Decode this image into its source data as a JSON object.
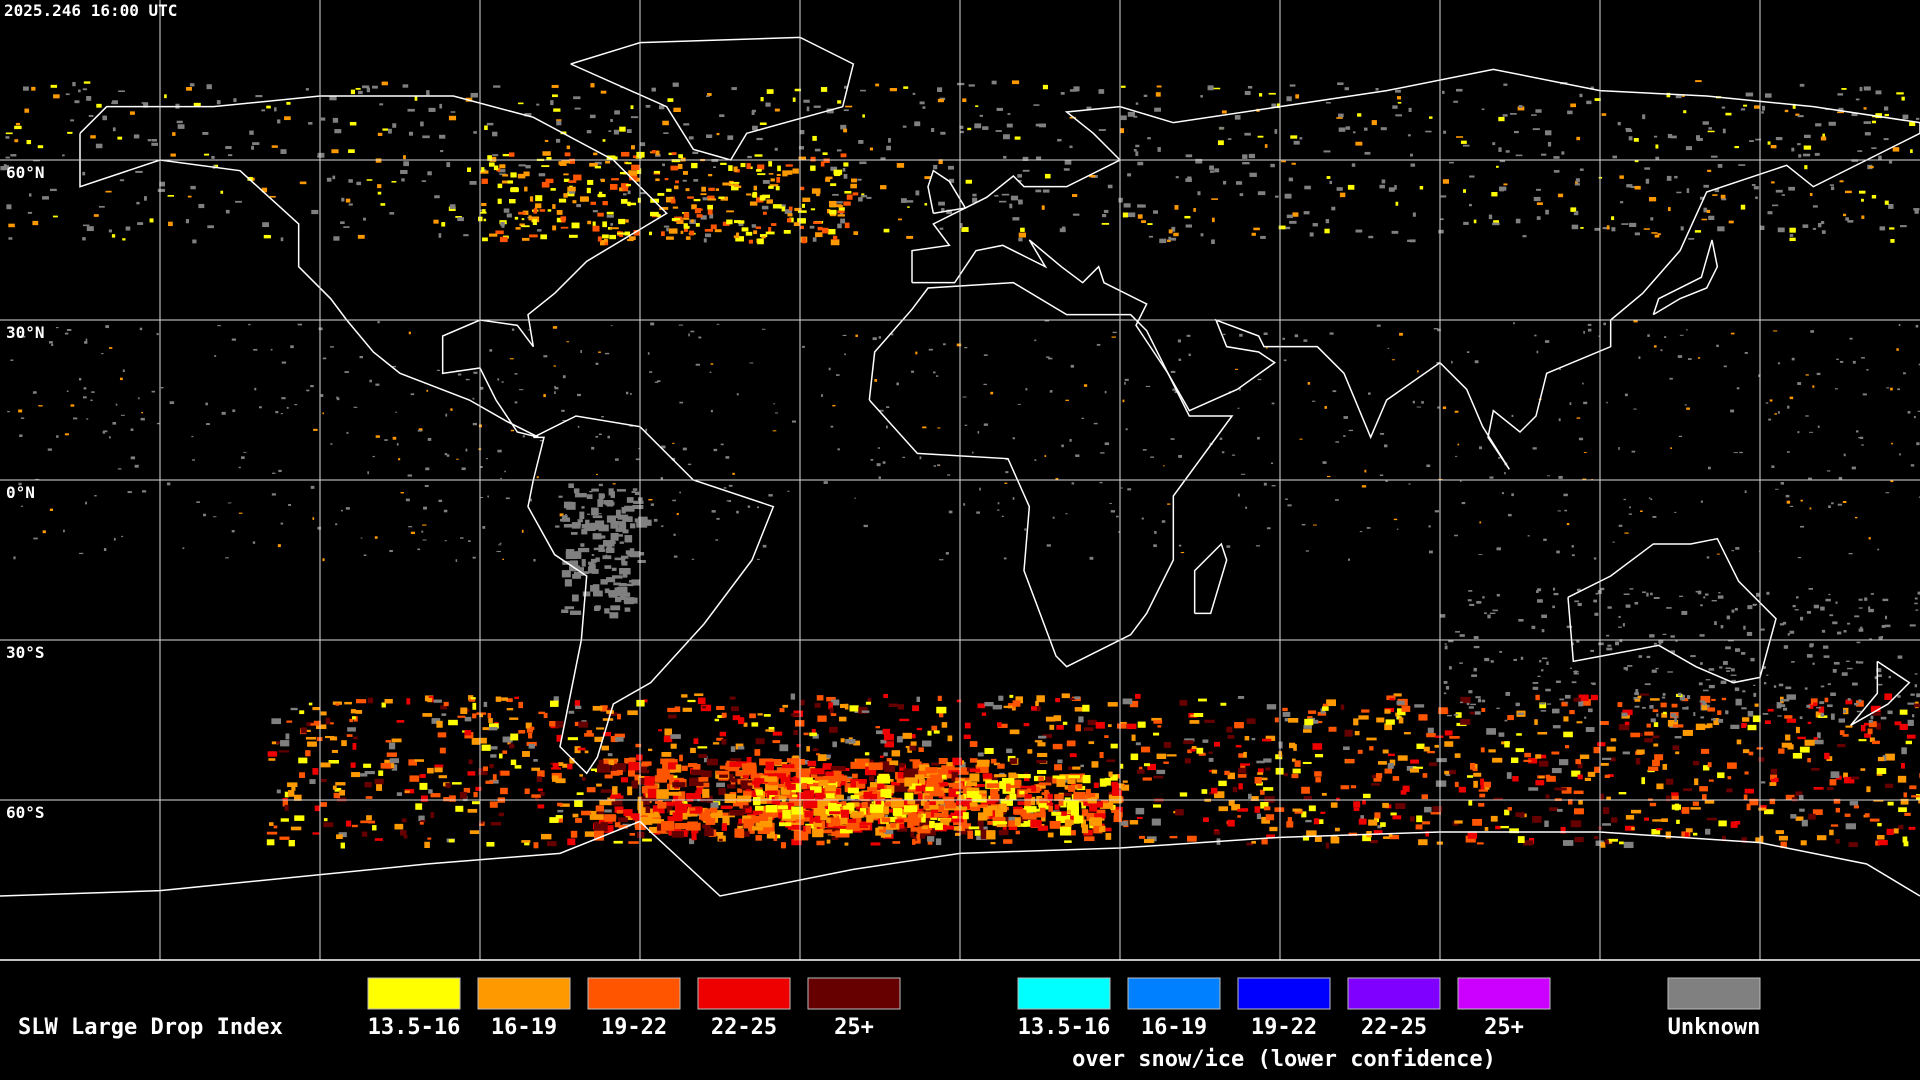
{
  "timestamp": "2025.246 16:00 UTC",
  "latitude_labels": [
    "60°N",
    "30°N",
    "0°N",
    "30°S",
    "60°S"
  ],
  "legend": {
    "title": "SLW Large Drop Index",
    "items": [
      {
        "label": "13.5-16",
        "color": "#ffff00"
      },
      {
        "label": "16-19",
        "color": "#ff9900"
      },
      {
        "label": "19-22",
        "color": "#ff5500"
      },
      {
        "label": "22-25",
        "color": "#ee0000"
      },
      {
        "label": "25+",
        "color": "#660000"
      }
    ],
    "snow_ice_items": [
      {
        "label": "13.5-16",
        "color": "#00ffff"
      },
      {
        "label": "16-19",
        "color": "#0080ff"
      },
      {
        "label": "19-22",
        "color": "#0000ff"
      },
      {
        "label": "22-25",
        "color": "#7f00ff"
      },
      {
        "label": "25+",
        "color": "#cc00ff"
      }
    ],
    "snow_ice_note": "over snow/ice (lower confidence)",
    "unknown": {
      "label": "Unknown",
      "color": "#808080"
    }
  }
}
